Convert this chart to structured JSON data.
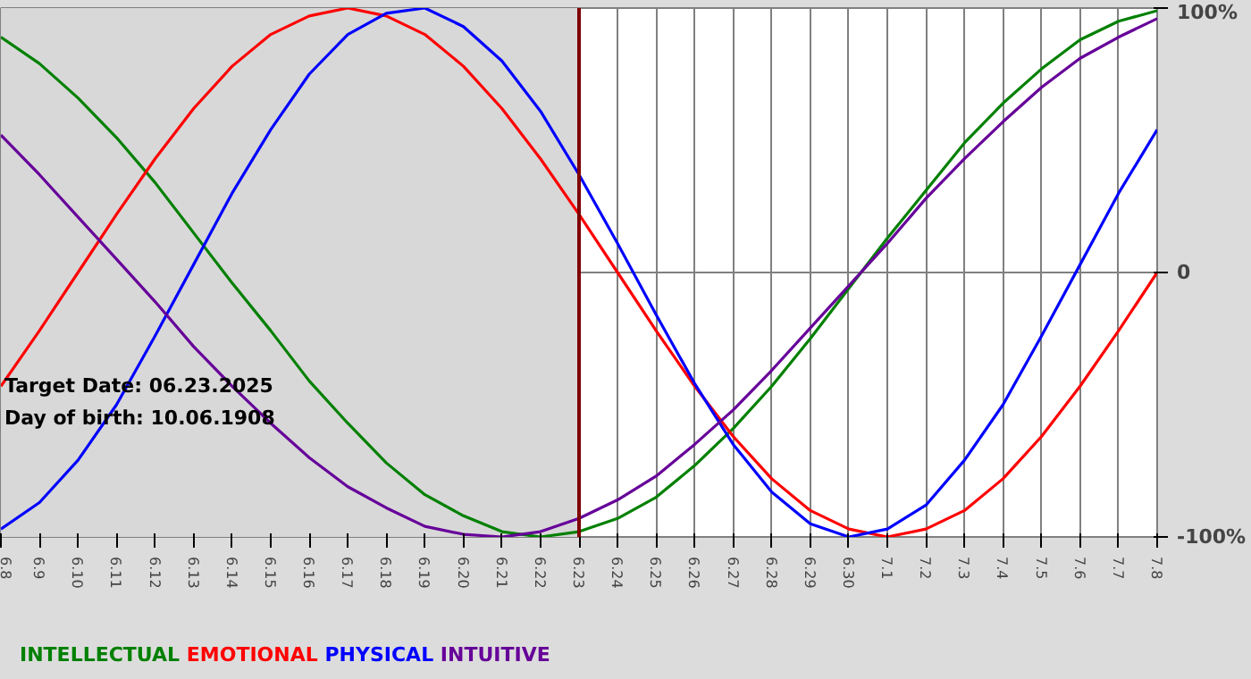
{
  "chart_data": {
    "type": "line",
    "categories": [
      "6.8",
      "6.9",
      "6.10",
      "6.11",
      "6.12",
      "6.13",
      "6.14",
      "6.15",
      "6.16",
      "6.17",
      "6.18",
      "6.19",
      "6.20",
      "6.21",
      "6.22",
      "6.23",
      "6.24",
      "6.25",
      "6.26",
      "6.27",
      "6.28",
      "6.29",
      "6.30",
      "7.1",
      "7.2",
      "7.3",
      "7.4",
      "7.5",
      "7.6",
      "7.7",
      "7.8"
    ],
    "series": [
      {
        "name": "INTELLECTUAL",
        "color": "#008000",
        "values": [
          89,
          79,
          66,
          51,
          34,
          15,
          -4,
          -22,
          -41,
          -57,
          -72,
          -84,
          -92,
          -98,
          -100,
          -98,
          -93,
          -85,
          -73,
          -59,
          -43,
          -25,
          -6,
          13,
          31,
          49,
          64,
          77,
          88,
          95,
          99
        ]
      },
      {
        "name": "EMOTIONAL",
        "color": "#ff0000",
        "values": [
          -43,
          -22,
          0,
          22,
          43,
          62,
          78,
          90,
          97,
          100,
          97,
          90,
          78,
          62,
          43,
          22,
          0,
          -22,
          -43,
          -62,
          -78,
          -90,
          -97,
          -100,
          -97,
          -90,
          -78,
          -62,
          -43,
          -22,
          0
        ]
      },
      {
        "name": "PHYSICAL",
        "color": "#0000ff",
        "values": [
          -97,
          -87,
          -71,
          -50,
          -24,
          3,
          30,
          54,
          75,
          90,
          98,
          100,
          93,
          80,
          61,
          37,
          11,
          -16,
          -42,
          -65,
          -83,
          -95,
          -100,
          -97,
          -88,
          -71,
          -50,
          -24,
          3,
          30,
          54
        ]
      },
      {
        "name": "INTUITIVE",
        "color": "#660099",
        "values": [
          52,
          37,
          21,
          5,
          -11,
          -28,
          -43,
          -57,
          -70,
          -81,
          -89,
          -96,
          -99,
          -100,
          -98,
          -93,
          -86,
          -77,
          -65,
          -52,
          -37,
          -21,
          -5,
          11,
          28,
          43,
          57,
          70,
          81,
          89,
          96
        ]
      }
    ],
    "ylim": [
      -100,
      100
    ],
    "yticks": [
      {
        "value": 100,
        "label": "100%"
      },
      {
        "value": 0,
        "label": "0"
      },
      {
        "value": -100,
        "label": "-100%"
      }
    ],
    "grid": true,
    "legend": "bottom",
    "ref_lines": [
      {
        "axis": "x",
        "value": "6.23",
        "color": "#800000"
      }
    ],
    "bands": [
      {
        "axis": "x",
        "from": "6.8",
        "to": "6.23",
        "color": "#d8d8d8"
      }
    ],
    "annotations": [
      "Target Date: 06.23.2025",
      "Day of birth: 10.06.1908"
    ]
  }
}
